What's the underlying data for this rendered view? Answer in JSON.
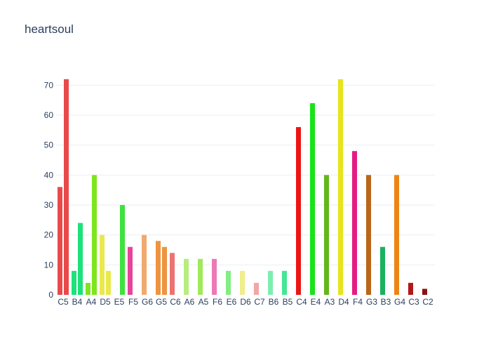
{
  "chart_data": {
    "type": "bar",
    "title": "heartsoul",
    "xlabel": "",
    "ylabel": "",
    "ylim": [
      0,
      75
    ],
    "yticks": [
      0,
      10,
      20,
      30,
      40,
      50,
      60,
      70
    ],
    "grid": true,
    "categories": [
      "C5",
      "B4",
      "A4",
      "D5",
      "E5",
      "F5",
      "G6",
      "G5",
      "C6",
      "A6",
      "A5",
      "F6",
      "E6",
      "D6",
      "C7",
      "B6",
      "B5",
      "C4",
      "E4",
      "A3",
      "D4",
      "F4",
      "G3",
      "B3",
      "G4",
      "C3",
      "C2"
    ],
    "bars": [
      {
        "category": "C5",
        "slot": 0,
        "value": 36,
        "color": "#e84a4a"
      },
      {
        "category": "C5",
        "slot": 1,
        "value": 72,
        "color": "#e84a4a"
      },
      {
        "category": "B4",
        "slot": 0,
        "value": 8,
        "color": "#1de17a"
      },
      {
        "category": "B4",
        "slot": 1,
        "value": 24,
        "color": "#1de17a"
      },
      {
        "category": "A4",
        "slot": 0,
        "value": 4,
        "color": "#7ee61e"
      },
      {
        "category": "A4",
        "slot": 1,
        "value": 40,
        "color": "#7ee61e"
      },
      {
        "category": "D5",
        "slot": 0,
        "value": 20,
        "color": "#e9e84d"
      },
      {
        "category": "D5",
        "slot": 1,
        "value": 8,
        "color": "#e9e84d"
      },
      {
        "category": "E5",
        "slot": 1,
        "value": 30,
        "color": "#3fe13f"
      },
      {
        "category": "F5",
        "slot": 0,
        "value": 16,
        "color": "#e6449b"
      },
      {
        "category": "G6",
        "slot": 0,
        "value": 20,
        "color": "#f0aa6e"
      },
      {
        "category": "G5",
        "slot": 0,
        "value": 18,
        "color": "#ee9440"
      },
      {
        "category": "G5",
        "slot": 1,
        "value": 16,
        "color": "#ee9440"
      },
      {
        "category": "C6",
        "slot": 0,
        "value": 14,
        "color": "#ed7272"
      },
      {
        "category": "A6",
        "slot": 0,
        "value": 12,
        "color": "#b7ec7e"
      },
      {
        "category": "A5",
        "slot": 0,
        "value": 12,
        "color": "#a0e95a"
      },
      {
        "category": "F6",
        "slot": 0,
        "value": 12,
        "color": "#ec79b6"
      },
      {
        "category": "E6",
        "slot": 0,
        "value": 8,
        "color": "#83ed83"
      },
      {
        "category": "D6",
        "slot": 0,
        "value": 8,
        "color": "#eeee8a"
      },
      {
        "category": "C7",
        "slot": 0,
        "value": 4,
        "color": "#f2a6a6"
      },
      {
        "category": "B6",
        "slot": 0,
        "value": 8,
        "color": "#7deeb0"
      },
      {
        "category": "B5",
        "slot": 0,
        "value": 8,
        "color": "#45e694"
      },
      {
        "category": "C4",
        "slot": 0,
        "value": 56,
        "color": "#ec1515"
      },
      {
        "category": "E4",
        "slot": 0,
        "value": 64,
        "color": "#19e319"
      },
      {
        "category": "A3",
        "slot": 0,
        "value": 40,
        "color": "#62b61c"
      },
      {
        "category": "D4",
        "slot": 0,
        "value": 72,
        "color": "#e5e51a"
      },
      {
        "category": "F4",
        "slot": 0,
        "value": 48,
        "color": "#e41c84"
      },
      {
        "category": "G3",
        "slot": 0,
        "value": 40,
        "color": "#ba6519"
      },
      {
        "category": "B3",
        "slot": 0,
        "value": 16,
        "color": "#19b35f"
      },
      {
        "category": "G4",
        "slot": 0,
        "value": 40,
        "color": "#ec8514"
      },
      {
        "category": "C3",
        "slot": 0,
        "value": 4,
        "color": "#b31717"
      },
      {
        "category": "C2",
        "slot": 0,
        "value": 2,
        "color": "#8a1111"
      }
    ]
  },
  "colors": {
    "text": "#2a3f5f",
    "grid": "#ebeef3",
    "background": "#ffffff"
  }
}
